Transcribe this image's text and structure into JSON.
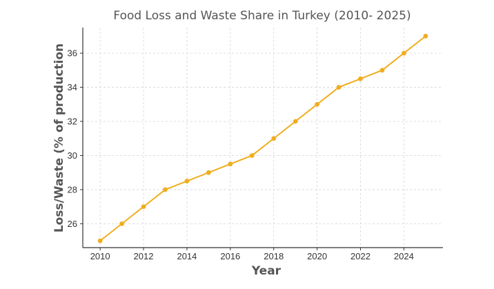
{
  "chart_data": {
    "type": "line",
    "title": "Food Loss and Waste Share in Turkey (2010- 2025)",
    "xlabel": "Year",
    "ylabel": "Loss/Waste (% of production",
    "x": [
      2010,
      2011,
      2012,
      2013,
      2014,
      2015,
      2016,
      2017,
      2018,
      2019,
      2020,
      2021,
      2022,
      2023,
      2024,
      2025
    ],
    "series": [
      {
        "values": [
          25,
          26,
          27,
          28,
          28.5,
          29,
          29.5,
          30,
          31,
          32,
          33,
          34,
          34.5,
          35,
          36,
          37
        ],
        "color": "#f0ad1e"
      }
    ],
    "xticks": [
      2010,
      2012,
      2014,
      2016,
      2018,
      2020,
      2022,
      2024
    ],
    "yticks": [
      26,
      28,
      30,
      32,
      34,
      36
    ],
    "xlim": [
      2009.2,
      2025.8
    ],
    "ylim": [
      24.6,
      37.5
    ],
    "grid": true,
    "legend": "none"
  }
}
